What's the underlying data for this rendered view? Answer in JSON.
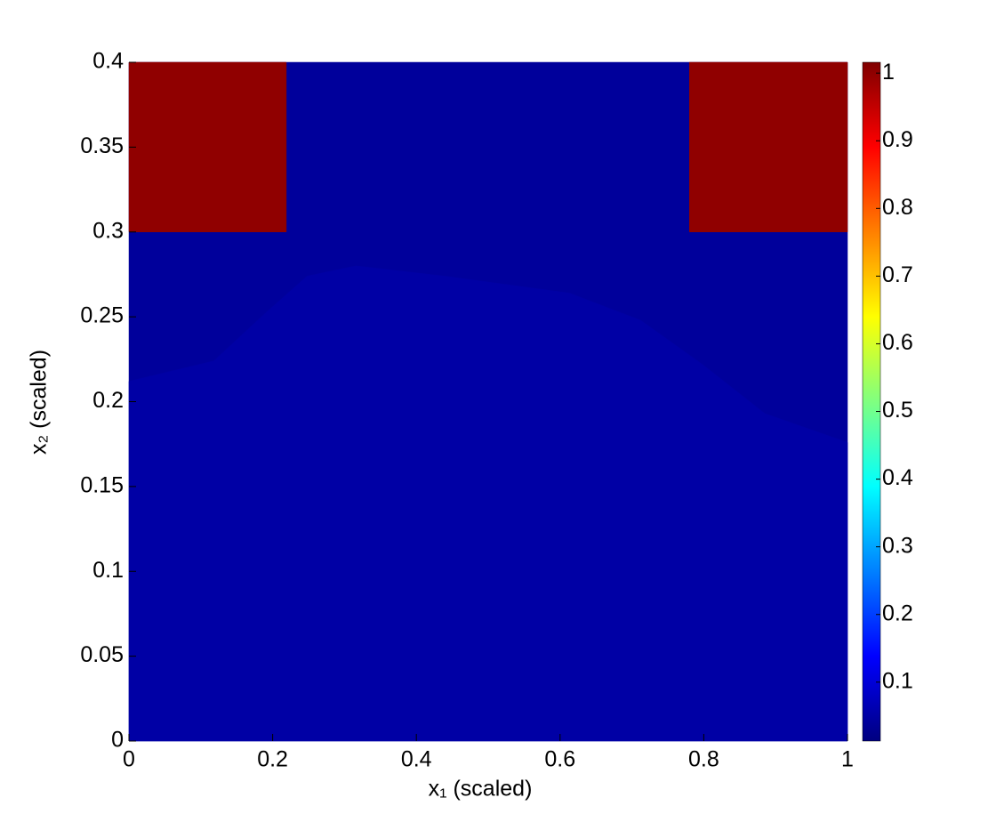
{
  "chart_data": {
    "type": "heatmap",
    "xlabel": "x₁ (scaled)",
    "ylabel": "x₂ (scaled)",
    "xlim": [
      0,
      1
    ],
    "ylim": [
      0,
      0.4
    ],
    "xticks": [
      0,
      0.2,
      0.4,
      0.6,
      0.8,
      1
    ],
    "yticks": [
      0,
      0.05,
      0.1,
      0.15,
      0.2,
      0.25,
      0.3,
      0.35,
      0.4
    ],
    "colormap": "jet",
    "clim": [
      0.013,
      1.016
    ],
    "cticks": [
      0.1,
      0.2,
      0.3,
      0.4,
      0.5,
      0.6,
      0.7,
      0.8,
      0.9,
      1
    ],
    "regions": [
      {
        "x": [
          0,
          1,
          1,
          0
        ],
        "y": [
          0,
          0,
          0.4,
          0.4
        ],
        "value": 0.04
      },
      {
        "x": [
          0,
          0.118,
          0.192,
          0.248,
          0.316,
          0.439,
          0.613,
          0.712,
          0.798,
          0.885,
          1,
          1,
          0
        ],
        "y": [
          0.212,
          0.224,
          0.253,
          0.274,
          0.28,
          0.274,
          0.264,
          0.248,
          0.222,
          0.193,
          0.176,
          0,
          0
        ],
        "value": 0.05
      },
      {
        "x": [
          0,
          0.219,
          0.219,
          0
        ],
        "y": [
          0.3,
          0.3,
          0.4,
          0.4
        ],
        "value": 1
      },
      {
        "x": [
          0.78,
          1,
          1,
          0.78
        ],
        "y": [
          0.3,
          0.3,
          0.4,
          0.4
        ],
        "value": 1
      }
    ]
  }
}
